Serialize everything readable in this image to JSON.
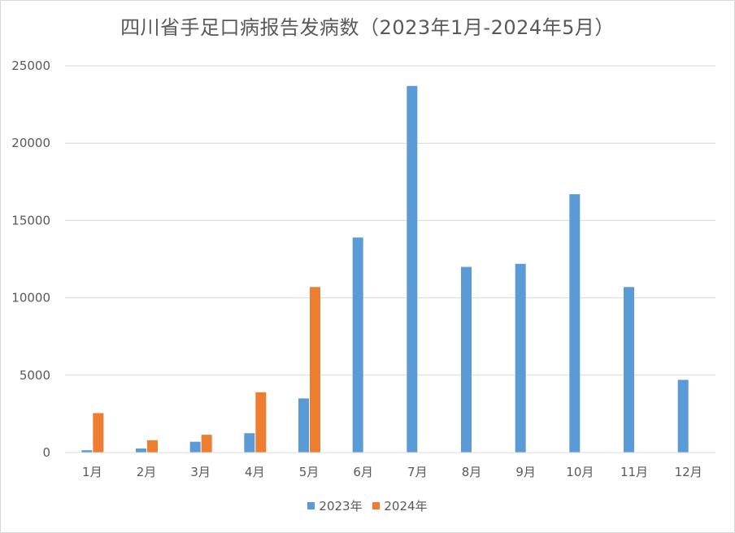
{
  "chart_data": {
    "type": "bar",
    "title": "四川省手足口病报告发病数（2023年1月-2024年5月）",
    "categories": [
      "1月",
      "2月",
      "3月",
      "4月",
      "5月",
      "6月",
      "7月",
      "8月",
      "9月",
      "10月",
      "11月",
      "12月"
    ],
    "series": [
      {
        "name": "2023年",
        "color": "#5b9bd5",
        "values": [
          150,
          260,
          700,
          1250,
          3500,
          13900,
          23700,
          12000,
          12200,
          16700,
          10700,
          4700
        ]
      },
      {
        "name": "2024年",
        "color": "#ed7d31",
        "values": [
          2550,
          800,
          1150,
          3900,
          10700,
          null,
          null,
          null,
          null,
          null,
          null,
          null
        ]
      }
    ],
    "ylim": [
      0,
      25000
    ],
    "yticks": [
      "0",
      "5000",
      "10000",
      "15000",
      "20000",
      "25000"
    ],
    "grid": true,
    "legend_position": "bottom"
  }
}
